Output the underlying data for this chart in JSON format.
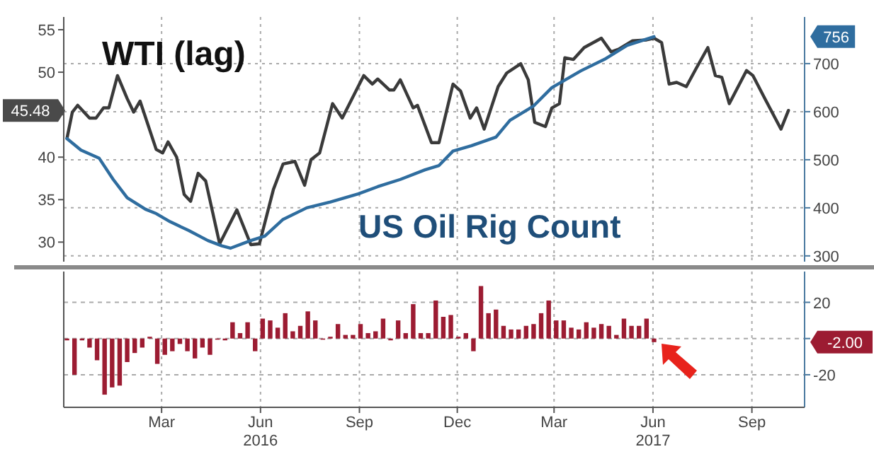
{
  "chart_data": [
    {
      "type": "line",
      "tick_labels": "y",
      "grid": true,
      "xlim": [
        "2015-12-01",
        "2017-10-20"
      ],
      "xticks": [
        {
          "value": "2016-03-01",
          "label": null
        },
        {
          "value": "2016-06-01",
          "label": null
        },
        {
          "value": "2016-09-01",
          "label": null
        },
        {
          "value": "2016-12-01",
          "label": null
        },
        {
          "value": "2017-03-01",
          "label": null
        },
        {
          "value": "2017-06-01",
          "label": null
        },
        {
          "value": "2017-09-01",
          "label": null
        }
      ],
      "ylim": [
        27.7,
        56.5
      ],
      "yticks": [
        30,
        35,
        40,
        {
          "value": 45,
          "label": null
        },
        50,
        55
      ],
      "y2lim": [
        288,
        797
      ],
      "y2ticks": [
        300,
        400,
        500,
        600,
        700
      ],
      "series": [
        {
          "name": "WTI (lag)",
          "color": "#3a3a3a",
          "x": [
            "2015-12-04",
            "2015-12-09",
            "2015-12-14",
            "2015-12-25",
            "2015-12-31",
            "2016-01-07",
            "2016-01-12",
            "2016-01-20",
            "2016-01-29",
            "2016-02-04",
            "2016-02-10",
            "2016-02-25",
            "2016-03-02",
            "2016-03-07",
            "2016-03-15",
            "2016-03-22",
            "2016-03-28",
            "2016-04-04",
            "2016-04-11",
            "2016-04-24",
            "2016-05-10",
            "2016-05-23",
            "2016-05-31",
            "2016-06-13",
            "2016-06-22",
            "2016-07-03",
            "2016-07-12",
            "2016-07-18",
            "2016-07-26",
            "2016-08-07",
            "2016-08-16",
            "2016-09-05",
            "2016-09-13",
            "2016-09-18",
            "2016-09-29",
            "2016-10-03",
            "2016-10-09",
            "2016-10-21",
            "2016-10-25",
            "2016-11-07",
            "2016-11-14",
            "2016-11-27",
            "2016-12-04",
            "2016-12-13",
            "2016-12-19",
            "2016-12-26",
            "2017-01-08",
            "2017-01-16",
            "2017-01-29",
            "2017-02-05",
            "2017-02-11",
            "2017-02-21",
            "2017-02-27",
            "2017-03-06",
            "2017-03-11",
            "2017-03-19",
            "2017-03-29",
            "2017-04-14",
            "2017-04-23",
            "2017-04-30",
            "2017-05-13",
            "2017-05-26",
            "2017-06-02",
            "2017-06-09",
            "2017-06-16",
            "2017-06-23",
            "2017-07-02",
            "2017-07-11",
            "2017-07-22",
            "2017-07-29",
            "2017-08-04",
            "2017-08-11",
            "2017-08-27",
            "2017-09-02",
            "2017-09-13",
            "2017-09-28",
            "2017-10-05"
          ],
          "values": [
            42.2,
            45.3,
            46.1,
            44.6,
            44.6,
            45.8,
            45.8,
            49.6,
            46.9,
            45.3,
            46.6,
            40.9,
            40.5,
            41.8,
            40.0,
            35.6,
            34.8,
            38.1,
            37.2,
            29.8,
            33.8,
            29.7,
            29.8,
            36.2,
            39.2,
            39.5,
            36.7,
            39.7,
            40.5,
            46.3,
            44.6,
            49.6,
            48.6,
            49.2,
            47.9,
            47.9,
            49.1,
            45.8,
            46.1,
            41.7,
            41.7,
            48.6,
            47.8,
            44.6,
            45.8,
            43.3,
            48.3,
            49.9,
            51.0,
            49.1,
            44.1,
            43.6,
            45.8,
            46.3,
            51.7,
            51.5,
            52.9,
            54.0,
            52.4,
            52.7,
            53.7,
            53.8,
            54.0,
            53.5,
            48.6,
            48.8,
            48.3,
            50.4,
            52.9,
            49.6,
            49.4,
            46.3,
            50.2,
            49.6,
            46.9,
            43.3,
            45.5
          ]
        },
        {
          "name": "US Oil Rig Count",
          "color": "#2f6d9f",
          "axis": "y2",
          "x": [
            "2015-12-04",
            "2015-12-17",
            "2016-01-03",
            "2016-01-16",
            "2016-01-29",
            "2016-02-15",
            "2016-02-25",
            "2016-03-09",
            "2016-03-26",
            "2016-04-13",
            "2016-04-26",
            "2016-05-04",
            "2016-05-23",
            "2016-06-05",
            "2016-06-22",
            "2016-07-14",
            "2016-08-05",
            "2016-08-31",
            "2016-09-18",
            "2016-10-09",
            "2016-11-01",
            "2016-11-14",
            "2016-11-27",
            "2016-12-14",
            "2017-01-06",
            "2017-01-19",
            "2017-02-10",
            "2017-02-27",
            "2017-03-26",
            "2017-04-17",
            "2017-05-08",
            "2017-06-02"
          ],
          "values": [
            544,
            520,
            503,
            459,
            421,
            397,
            388,
            371,
            353,
            332,
            321,
            316,
            332,
            341,
            376,
            400,
            412,
            429,
            444,
            459,
            479,
            488,
            518,
            529,
            547,
            582,
            612,
            650,
            685,
            709,
            738,
            756
          ]
        }
      ],
      "annotations": [
        "45.48",
        "756"
      ]
    },
    {
      "type": "bar",
      "color": "#9c1c32",
      "grid": true,
      "xlim": [
        "2015-12-01",
        "2017-10-20"
      ],
      "xticks": [
        {
          "value": "2016-03-01",
          "label": "Mar"
        },
        {
          "value": "2016-06-01",
          "label": "Jun\n2016"
        },
        {
          "value": "2016-09-01",
          "label": "Sep"
        },
        {
          "value": "2016-12-01",
          "label": "Dec"
        },
        {
          "value": "2017-03-01",
          "label": "Mar"
        },
        {
          "value": "2017-06-01",
          "label": "Jun\n2017"
        },
        {
          "value": "2017-09-01",
          "label": "Sep"
        }
      ],
      "ylim": [
        -38,
        37
      ],
      "yticks": [
        -20,
        {
          "value": 0,
          "label": null
        },
        20
      ],
      "x": [
        "2015-12-04",
        "2015-12-11",
        "2015-12-18",
        "2015-12-25",
        "2016-01-01",
        "2016-01-08",
        "2016-01-15",
        "2016-01-22",
        "2016-01-29",
        "2016-02-05",
        "2016-02-12",
        "2016-02-19",
        "2016-02-26",
        "2016-03-04",
        "2016-03-11",
        "2016-03-18",
        "2016-03-25",
        "2016-04-01",
        "2016-04-08",
        "2016-04-15",
        "2016-04-22",
        "2016-04-29",
        "2016-05-06",
        "2016-05-13",
        "2016-05-20",
        "2016-05-27",
        "2016-06-03",
        "2016-06-10",
        "2016-06-17",
        "2016-06-24",
        "2016-07-01",
        "2016-07-08",
        "2016-07-15",
        "2016-07-22",
        "2016-07-29",
        "2016-08-05",
        "2016-08-12",
        "2016-08-19",
        "2016-08-26",
        "2016-09-02",
        "2016-09-09",
        "2016-09-16",
        "2016-09-23",
        "2016-09-30",
        "2016-10-07",
        "2016-10-14",
        "2016-10-21",
        "2016-10-28",
        "2016-11-04",
        "2016-11-11",
        "2016-11-18",
        "2016-11-25",
        "2016-12-02",
        "2016-12-09",
        "2016-12-16",
        "2016-12-23",
        "2016-12-30",
        "2017-01-06",
        "2017-01-13",
        "2017-01-20",
        "2017-01-27",
        "2017-02-03",
        "2017-02-10",
        "2017-02-17",
        "2017-02-24",
        "2017-03-03",
        "2017-03-10",
        "2017-03-17",
        "2017-03-24",
        "2017-03-31",
        "2017-04-07",
        "2017-04-14",
        "2017-04-21",
        "2017-04-28",
        "2017-05-05",
        "2017-05-12",
        "2017-05-19",
        "2017-05-26",
        "2017-06-02"
      ],
      "values": [
        -1,
        -20,
        -1,
        -5,
        -12,
        -31,
        -27,
        -26,
        -13,
        -8,
        -5,
        1,
        -14,
        -9,
        -7,
        -3,
        -7,
        -11,
        -5,
        -9,
        0,
        -1,
        9,
        3,
        9,
        -7,
        11,
        10,
        6,
        14,
        4,
        7,
        15,
        10,
        0,
        1,
        8,
        2,
        2,
        8,
        3,
        4,
        11,
        -1,
        10,
        3,
        19,
        3,
        3,
        21,
        12,
        13,
        1,
        3,
        -7,
        29,
        14,
        16,
        7,
        5,
        5,
        7,
        8,
        14,
        21,
        10,
        10,
        6,
        5,
        9,
        6,
        8,
        7,
        2,
        11,
        7,
        7,
        11,
        -2
      ],
      "annotations": [
        "-2.00"
      ]
    }
  ]
}
